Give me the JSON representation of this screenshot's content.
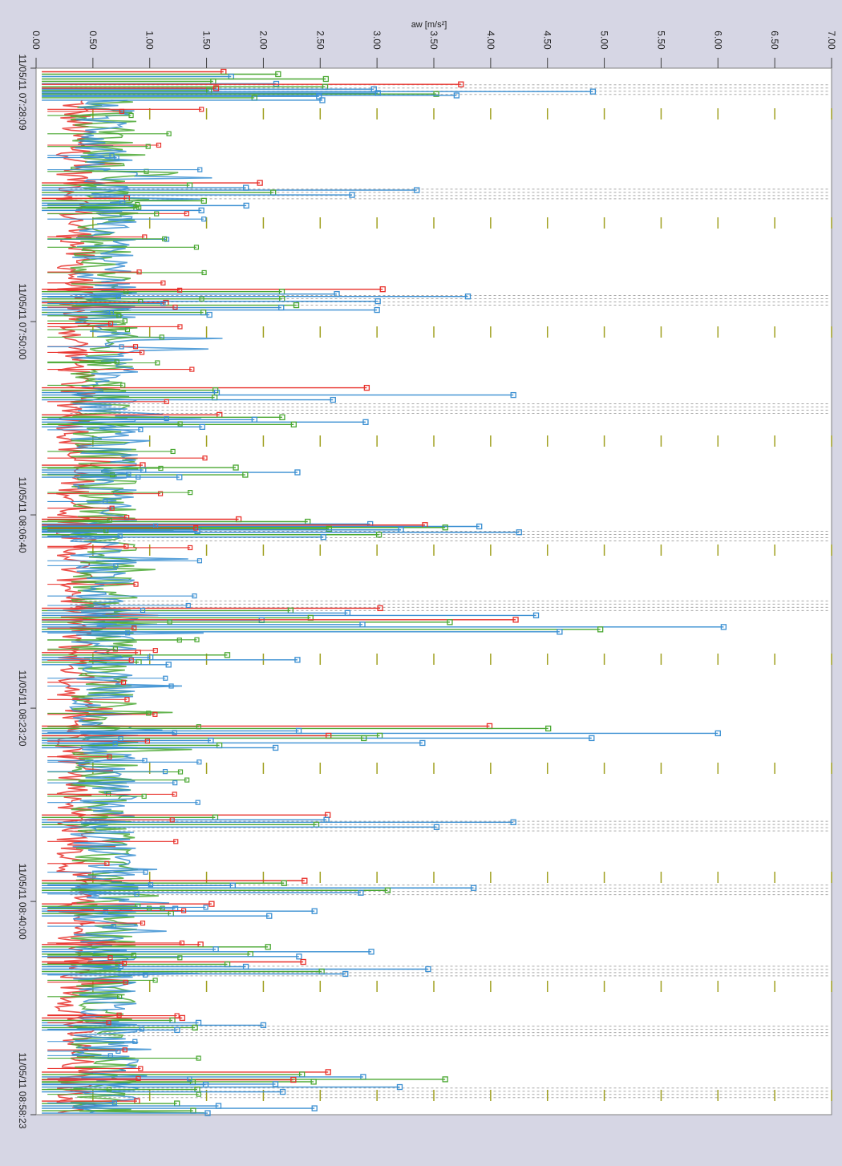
{
  "chart_data": {
    "type": "line",
    "orientation": "rotated-90-clockwise",
    "y_axis_label": "aw [m/s²]",
    "y_ticks": [
      "0.00",
      "0.50",
      "1.00",
      "1.50",
      "2.00",
      "2.50",
      "3.00",
      "3.50",
      "4.00",
      "4.50",
      "5.00",
      "5.50",
      "6.00",
      "6.50",
      "7.00"
    ],
    "ylim": [
      0,
      7
    ],
    "x_ticks": [
      "11/05/11 07:28:09",
      "11/05/11 07:50:00",
      "11/05/11 08:06:40",
      "11/05/11 08:23:20",
      "11/05/11 08:40:00",
      "11/05/11 08:58:23"
    ],
    "xlim": [
      "11/05/11 07:28:09",
      "11/05/11 08:58:23"
    ],
    "grid": "minor ticks at 0.50 intervals",
    "legend": "none",
    "colors": {
      "red_series": "#e8302a",
      "green_series": "#4aa832",
      "blue_series": "#3a8fd2",
      "dotted_bands": "#a8a8a8",
      "axis_ticks": "#a0a020",
      "plot_background": "#ffffff",
      "frame_background": "#d6d6e4"
    },
    "series": [
      {
        "color_key": "red_series",
        "typical_level": 0.35
      },
      {
        "color_key": "green_series",
        "typical_level": 0.6
      },
      {
        "color_key": "blue_series",
        "typical_level": 0.6
      }
    ],
    "bursts": [
      {
        "time": "07:29:05",
        "peak": 2.55,
        "color_key": "green_series"
      },
      {
        "time": "07:30:10",
        "peak": 4.9,
        "color_key": "blue_series"
      },
      {
        "time": "07:30:30",
        "peak": 3.7,
        "color_key": "blue_series"
      },
      {
        "time": "07:38:40",
        "peak": 3.35,
        "color_key": "blue_series"
      },
      {
        "time": "07:40:00",
        "peak": 1.85,
        "color_key": "blue_series"
      },
      {
        "time": "07:47:50",
        "peak": 3.8,
        "color_key": "blue_series"
      },
      {
        "time": "07:49:00",
        "peak": 3.0,
        "color_key": "blue_series"
      },
      {
        "time": "07:56:20",
        "peak": 4.2,
        "color_key": "blue_series"
      },
      {
        "time": "07:58:40",
        "peak": 2.9,
        "color_key": "blue_series"
      },
      {
        "time": "08:03:00",
        "peak": 2.3,
        "color_key": "blue_series"
      },
      {
        "time": "08:07:40",
        "peak": 3.9,
        "color_key": "blue_series"
      },
      {
        "time": "08:08:10",
        "peak": 4.25,
        "color_key": "blue_series"
      },
      {
        "time": "08:15:20",
        "peak": 4.4,
        "color_key": "blue_series"
      },
      {
        "time": "08:16:20",
        "peak": 6.05,
        "color_key": "blue_series"
      },
      {
        "time": "08:19:10",
        "peak": 2.3,
        "color_key": "blue_series"
      },
      {
        "time": "08:25:30",
        "peak": 6.0,
        "color_key": "blue_series"
      },
      {
        "time": "08:26:20",
        "peak": 3.4,
        "color_key": "blue_series"
      },
      {
        "time": "08:33:10",
        "peak": 4.2,
        "color_key": "blue_series"
      },
      {
        "time": "08:38:50",
        "peak": 3.85,
        "color_key": "blue_series"
      },
      {
        "time": "08:40:50",
        "peak": 2.45,
        "color_key": "blue_series"
      },
      {
        "time": "08:44:20",
        "peak": 2.95,
        "color_key": "blue_series"
      },
      {
        "time": "08:45:50",
        "peak": 3.45,
        "color_key": "blue_series"
      },
      {
        "time": "08:50:40",
        "peak": 2.0,
        "color_key": "blue_series"
      },
      {
        "time": "08:55:20",
        "peak": 3.6,
        "color_key": "green_series"
      },
      {
        "time": "08:56:00",
        "peak": 3.2,
        "color_key": "blue_series"
      },
      {
        "time": "08:57:50",
        "peak": 2.45,
        "color_key": "blue_series"
      }
    ],
    "dotted_band_times": [
      "07:30:00",
      "07:39:00",
      "07:48:10",
      "07:57:30",
      "08:08:30",
      "08:14:30",
      "08:33:30",
      "08:39:00",
      "08:46:00",
      "08:51:10",
      "08:56:30"
    ]
  }
}
